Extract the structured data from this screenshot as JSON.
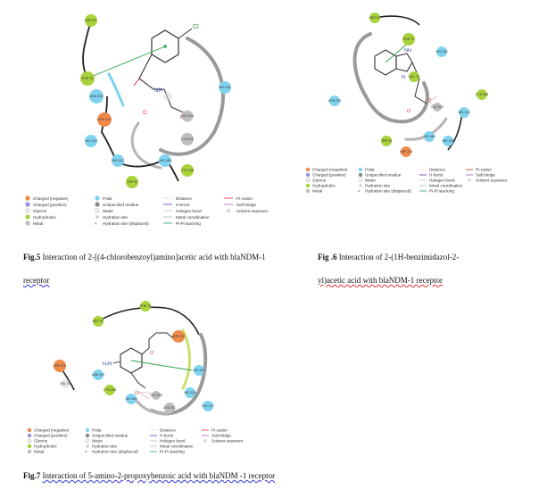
{
  "legend_labels": {
    "col1": [
      "Charged (negative)",
      "Charged (positive)",
      "Glycine",
      "Hydrophobic",
      "Metal"
    ],
    "col2": [
      "Polar",
      "Unspecified residue",
      "Water",
      "Hydration site",
      "Hydration site (displaced)"
    ],
    "col3": [
      "Distance",
      "H-bond",
      "Halogen bond",
      "Metal coordination",
      "Pi-Pi stacking"
    ],
    "col4": [
      "Pi-cation",
      "Salt bridge",
      "Solvent exposure"
    ]
  },
  "colors": {
    "negative": "#f08a4b",
    "positive": "#9b8fd6",
    "glycine": "#e6e6e6",
    "hydrophobic": "#a9d23b",
    "metal": "#bdbdbd",
    "polar": "#7fd3ef",
    "hbond": "#7a2fb5",
    "pipi": "#2fa44a",
    "picat": "#e0292f",
    "saltbridge": "#9b5fc0"
  },
  "fig5": {
    "caption_label": "Fig.5",
    "caption_line1": "Interaction of 2-[(4-chlorobenzoyl)amino]acetic acid with blaNDM-1",
    "caption_line2": "receptor",
    "atom_cl": "Cl",
    "atom_nh": "NH",
    "atom_o1": "O",
    "atom_o2": "O",
    "residues": [
      "MET 67",
      "PHE 70",
      "ASN 220",
      "ASP 124",
      "HIS 250",
      "HIS 120",
      "HIS 122",
      "TRP 93",
      "CYS 208",
      "HIS 189",
      "LYS 211",
      "GLY 219"
    ]
  },
  "fig6": {
    "caption_label": "Fig .6",
    "caption_line1": "Interaction of 2-(1H-benzimidazol-2-",
    "caption_line2": "yl)acetic acid with blaNDM-1 receptor",
    "atom_n": "N",
    "atom_nh": "NH",
    "atom_o1": "O",
    "atom_o2": "O",
    "residues": [
      "MET 67",
      "PHE 70",
      "VAL 73",
      "TRP 93",
      "ASN 220",
      "HIS 120",
      "HIS 122",
      "HIS 189",
      "HIS 250",
      "ASP 124",
      "GLY 219",
      "CYS 208"
    ]
  },
  "fig7": {
    "caption_label": "Fig.7",
    "caption_line1": "Interaction of 5-amino-2-propoxybenzoic acid with blaNDM -1 receptor",
    "atom_h2n": "H₂N",
    "atom_o1": "O",
    "atom_o2": "O",
    "residues": [
      "MET 67",
      "PHE 70",
      "ASP 124",
      "VAL 73",
      "ASN 220",
      "HIS 250",
      "HIS 120",
      "HIS 122",
      "HIS 189",
      "GLY 219",
      "CYS 208",
      "LYS 211",
      "ASP 212"
    ]
  }
}
